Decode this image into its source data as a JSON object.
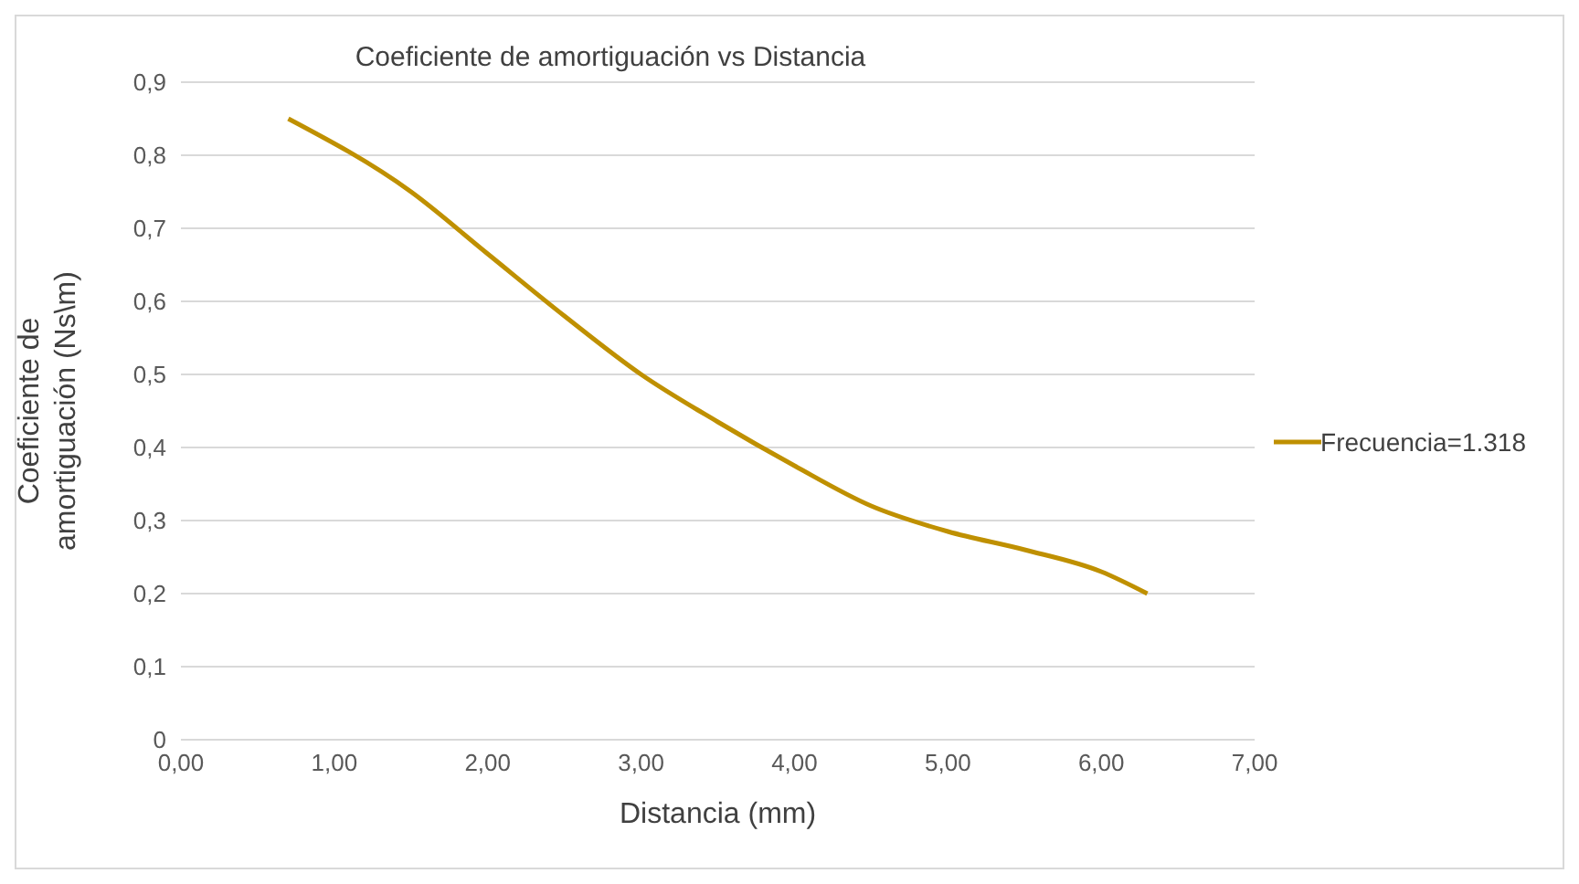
{
  "chart_data": {
    "type": "line",
    "title": "Coeficiente de amortiguación vs Distancia",
    "xlabel": "Distancia (mm)",
    "ylabel": "Coeficiente de amortiguación (Ns\\m)",
    "series": [
      {
        "name": "Frecuencia=1.318",
        "color": "#bf9000",
        "x": [
          0.7,
          1.5,
          2,
          2.5,
          3,
          3.5,
          4,
          4.5,
          5,
          5.5,
          6,
          6.3
        ],
        "values": [
          0.85,
          0.75,
          0.665,
          0.58,
          0.5,
          0.435,
          0.375,
          0.32,
          0.285,
          0.26,
          0.23,
          0.2
        ]
      }
    ],
    "xlim": [
      0,
      7
    ],
    "xticks": [
      {
        "value": 0,
        "label": "0,00"
      },
      {
        "value": 1,
        "label": "1,00"
      },
      {
        "value": 2,
        "label": "2,00"
      },
      {
        "value": 3,
        "label": "3,00"
      },
      {
        "value": 4,
        "label": "4,00"
      },
      {
        "value": 5,
        "label": "5,00"
      },
      {
        "value": 6,
        "label": "6,00"
      },
      {
        "value": 7,
        "label": "7,00"
      }
    ],
    "ylim": [
      0,
      0.9
    ],
    "yticks": [
      0,
      {
        "value": 0.1,
        "label": "0,1"
      },
      {
        "value": 0.2,
        "label": "0,2"
      },
      {
        "value": 0.3,
        "label": "0,3"
      },
      {
        "value": 0.4,
        "label": "0,4"
      },
      {
        "value": 0.5,
        "label": "0,5"
      },
      {
        "value": 0.6,
        "label": "0,6"
      },
      {
        "value": 0.7,
        "label": "0,7"
      },
      {
        "value": 0.8,
        "label": "0,8"
      },
      {
        "value": 0.9,
        "label": "0,9"
      }
    ],
    "grid": "y",
    "legend": "right",
    "marker": "none",
    "line_style": "solid"
  }
}
